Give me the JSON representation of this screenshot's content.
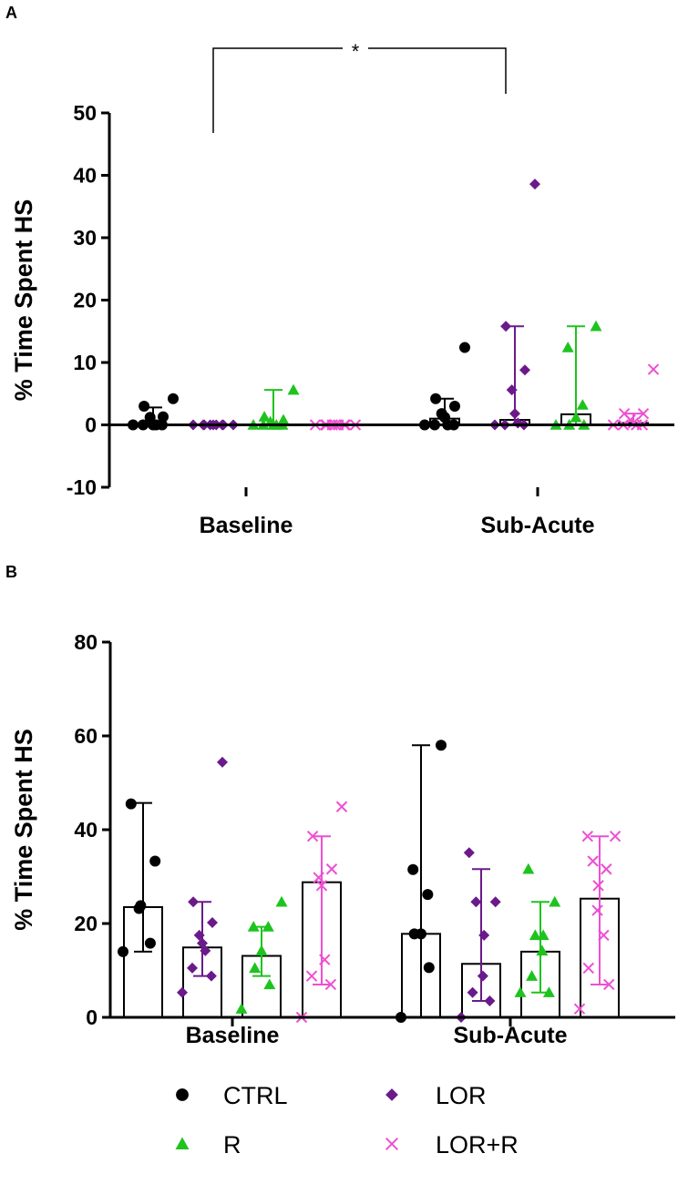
{
  "colors": {
    "CTRL": "#000000",
    "LOR": "#6a1a8a",
    "R": "#1ec31e",
    "LOR+R": "#ee4fd2"
  },
  "legend": [
    {
      "name": "CTRL",
      "marker": "circle"
    },
    {
      "name": "LOR",
      "marker": "diamond"
    },
    {
      "name": "R",
      "marker": "triangle"
    },
    {
      "name": "LOR+R",
      "marker": "cross"
    }
  ],
  "chart_data": [
    {
      "panel": "A",
      "type": "bar",
      "ylabel": "% Time Spent HS",
      "ylim": [
        -10,
        50
      ],
      "yticks": [
        -10,
        0,
        10,
        20,
        30,
        40,
        50
      ],
      "categories": [
        "Baseline",
        "Sub-Acute"
      ],
      "significance": {
        "label": "*",
        "between": [
          "Baseline",
          "Sub-Acute"
        ]
      },
      "series": [
        {
          "name": "CTRL",
          "marker": "circle",
          "bars": [
            0,
            1
          ],
          "errors": [
            [
              0,
              2.8
            ],
            [
              0,
              4.2
            ]
          ],
          "points": [
            [
              0,
              0,
              0,
              0,
              0,
              1.2,
              1.3,
              3.0,
              4.2
            ],
            [
              0,
              0,
              0,
              0,
              1.2,
              1.8,
              3.0,
              4.2,
              12.4
            ]
          ]
        },
        {
          "name": "LOR",
          "marker": "diamond",
          "bars": [
            0,
            0.8
          ],
          "errors": [
            [
              0,
              0
            ],
            [
              0,
              15.8
            ]
          ],
          "points": [
            [
              0,
              0,
              0,
              0,
              0,
              0,
              0,
              0,
              0
            ],
            [
              0,
              0,
              0,
              0.3,
              1.8,
              5.6,
              8.8,
              15.8,
              38.6
            ]
          ]
        },
        {
          "name": "R",
          "marker": "triangle",
          "bars": [
            0,
            1.7
          ],
          "errors": [
            [
              0,
              5.6
            ],
            [
              0,
              15.8
            ]
          ],
          "points": [
            [
              0,
              0,
              0,
              0,
              0,
              0.5,
              0.8,
              1.3,
              5.6
            ],
            [
              0,
              0,
              0,
              1.2,
              3.2,
              12.4,
              15.8
            ]
          ]
        },
        {
          "name": "LOR+R",
          "marker": "cross",
          "bars": [
            0,
            0.3
          ],
          "errors": [
            [
              0,
              0
            ],
            [
              0,
              1.8
            ]
          ],
          "points": [
            [
              0,
              0,
              0,
              0,
              0,
              0,
              0,
              0,
              0
            ],
            [
              0,
              0,
              0,
              0,
              0.3,
              0.8,
              1.8,
              1.8,
              8.9
            ]
          ]
        }
      ]
    },
    {
      "panel": "B",
      "type": "bar",
      "ylabel": "% Time Spent HS",
      "ylim": [
        0,
        80
      ],
      "yticks": [
        0,
        20,
        40,
        60,
        80
      ],
      "categories": [
        "Baseline",
        "Sub-Acute"
      ],
      "series": [
        {
          "name": "CTRL",
          "marker": "circle",
          "bars": [
            23.5,
            17.8
          ],
          "errors": [
            [
              14,
              45.7
            ],
            [
              0,
              58
            ]
          ],
          "points": [
            [
              14,
              15.8,
              23.2,
              23.8,
              33.3,
              45.5
            ],
            [
              0,
              10.6,
              17.8,
              17.8,
              26.2,
              31.5,
              58
            ]
          ]
        },
        {
          "name": "LOR",
          "marker": "diamond",
          "bars": [
            14.9,
            11.4
          ],
          "errors": [
            [
              8.8,
              24.6
            ],
            [
              3.5,
              31.6
            ]
          ],
          "points": [
            [
              5.3,
              8.8,
              10.5,
              14.2,
              15.8,
              17.5,
              20.2,
              24.6,
              54.4
            ],
            [
              0,
              3.5,
              5.3,
              8.8,
              17.5,
              24.6,
              24.6,
              35.1
            ]
          ]
        },
        {
          "name": "R",
          "marker": "triangle",
          "bars": [
            13.1,
            14.0
          ],
          "errors": [
            [
              8.8,
              19.3
            ],
            [
              5.3,
              24.6
            ]
          ],
          "points": [
            [
              1.8,
              7.0,
              10.5,
              14.2,
              19.3,
              19.3,
              24.6
            ],
            [
              5.3,
              5.3,
              8.8,
              14.2,
              17.5,
              17.5,
              24.6,
              31.6
            ]
          ]
        },
        {
          "name": "LOR+R",
          "marker": "cross",
          "bars": [
            28.8,
            25.3
          ],
          "errors": [
            [
              7.0,
              38.6
            ],
            [
              7.0,
              38.6
            ]
          ],
          "points": [
            [
              0,
              7.0,
              8.8,
              12.3,
              28.1,
              29.8,
              31.6,
              38.6,
              44.9
            ],
            [
              1.8,
              7.0,
              10.5,
              17.5,
              22.8,
              28.1,
              31.6,
              33.3,
              38.6,
              38.6
            ]
          ]
        }
      ]
    }
  ]
}
